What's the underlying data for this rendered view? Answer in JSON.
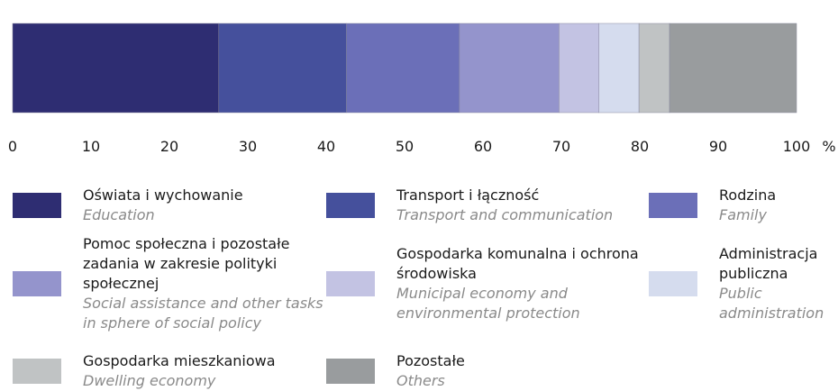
{
  "chart_data": {
    "type": "stacked-bar",
    "orientation": "horizontal",
    "x_label": "%",
    "xlim": [
      0,
      100
    ],
    "xticks": [
      0,
      10,
      20,
      30,
      40,
      50,
      60,
      70,
      80,
      90,
      100
    ],
    "series": [
      {
        "name": "Oświata i wychowanie",
        "name_en": "Education",
        "color": "#2e2d72",
        "values": [
          26.3
        ]
      },
      {
        "name": "Transport i łączność",
        "name_en": "Transport and communication",
        "color": "#45509c",
        "values": [
          16.3
        ]
      },
      {
        "name": "Rodzina",
        "name_en": "Family",
        "color": "#6b6fb8",
        "values": [
          14.4
        ]
      },
      {
        "name": "Pomoc społeczna i pozostałe zadania w zakresie polityki społecznej",
        "name_en": "Social assistance and other tasks in sphere of social policy",
        "color": "#9494cc",
        "values": [
          12.7
        ]
      },
      {
        "name": "Gospodarka komunalna i ochrona środowiska",
        "name_en": "Municipal economy and environmental protection",
        "color": "#c3c3e3",
        "values": [
          5.1
        ]
      },
      {
        "name": "Administracja publiczna",
        "name_en": "Public administration",
        "color": "#d5dcee",
        "values": [
          5.1
        ]
      },
      {
        "name": "Gospodarka mieszkaniowa",
        "name_en": "Dwelling economy",
        "color": "#c0c3c4",
        "values": [
          3.9
        ]
      },
      {
        "name": "Pozostałe",
        "name_en": "Others",
        "color": "#999c9e",
        "values": [
          16.2
        ]
      }
    ]
  }
}
